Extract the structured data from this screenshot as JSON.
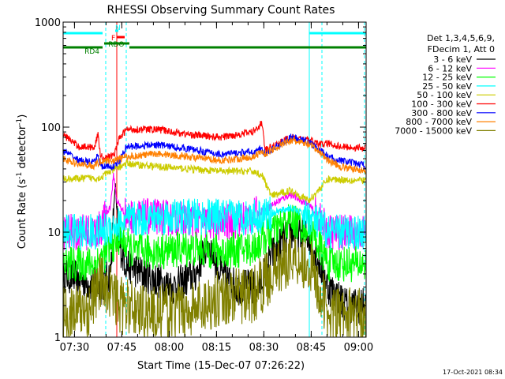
{
  "chart_data": {
    "type": "line",
    "title": "RHESSI Observing Summary Count Rates",
    "ylabel_main": "Count Rate (s",
    "ylabel_sup": "-1",
    "ylabel_tail": " detector",
    "ylabel_close": ")",
    "xlabel": "Start Time (15-Dec-07 07:26:22)",
    "timestamp": "17-Oct-2021 08:34",
    "y_scale": "log",
    "ylim": [
      1,
      1000
    ],
    "xlim_minutes": [
      0,
      96
    ],
    "y_ticks": [
      {
        "value": 1,
        "label": "1"
      },
      {
        "value": 10,
        "label": "10"
      },
      {
        "value": 100,
        "label": "100"
      },
      {
        "value": 1000,
        "label": "1000"
      }
    ],
    "x_ticks": [
      {
        "minute": 3.6,
        "label": "07:30"
      },
      {
        "minute": 18.6,
        "label": "07:45"
      },
      {
        "minute": 33.6,
        "label": "08:00"
      },
      {
        "minute": 48.6,
        "label": "08:15"
      },
      {
        "minute": 63.6,
        "label": "08:30"
      },
      {
        "minute": 78.6,
        "label": "08:45"
      },
      {
        "minute": 93.6,
        "label": "09:00"
      }
    ],
    "legend_header": [
      "Det 1,3,4,5,6,9,",
      "FDecim 1, Att 0"
    ],
    "series": [
      {
        "name": "3 - 6 keV",
        "color": "#000000",
        "points": [
          [
            0,
            4
          ],
          [
            12,
            3
          ],
          [
            15,
            4
          ],
          [
            16.5,
            30
          ],
          [
            17.5,
            8
          ],
          [
            20,
            5
          ],
          [
            25,
            4
          ],
          [
            35,
            3
          ],
          [
            42,
            4
          ],
          [
            46,
            8
          ],
          [
            50,
            4
          ],
          [
            55,
            3
          ],
          [
            62,
            3
          ],
          [
            66,
            6
          ],
          [
            72,
            10
          ],
          [
            78,
            9
          ],
          [
            84,
            3
          ],
          [
            90,
            2
          ],
          [
            96,
            2
          ]
        ]
      },
      {
        "name": "6 - 12 keV",
        "color": "#ff00ff",
        "points": [
          [
            0,
            10
          ],
          [
            10,
            10
          ],
          [
            12,
            11
          ],
          [
            15,
            18
          ],
          [
            16,
            35
          ],
          [
            17,
            20
          ],
          [
            20,
            14
          ],
          [
            30,
            14
          ],
          [
            40,
            13
          ],
          [
            50,
            12
          ],
          [
            60,
            14
          ],
          [
            66,
            18
          ],
          [
            72,
            23
          ],
          [
            78,
            18
          ],
          [
            84,
            10
          ],
          [
            90,
            10
          ],
          [
            96,
            10
          ]
        ]
      },
      {
        "name": "12 - 25 keV",
        "color": "#00ff00",
        "points": [
          [
            0,
            5
          ],
          [
            10,
            5
          ],
          [
            12,
            5.5
          ],
          [
            18,
            9
          ],
          [
            22,
            6.5
          ],
          [
            30,
            6.5
          ],
          [
            40,
            7
          ],
          [
            50,
            6.5
          ],
          [
            60,
            7
          ],
          [
            66,
            10
          ],
          [
            72,
            13
          ],
          [
            78,
            11
          ],
          [
            84,
            5
          ],
          [
            96,
            5
          ]
        ]
      },
      {
        "name": "25 - 50 keV",
        "color": "#00ffff",
        "points": [
          [
            0,
            10
          ],
          [
            10,
            10
          ],
          [
            12,
            10
          ],
          [
            16,
            11.5
          ],
          [
            22,
            13
          ],
          [
            30,
            14
          ],
          [
            40,
            14
          ],
          [
            50,
            14
          ],
          [
            60,
            14
          ],
          [
            66,
            15
          ],
          [
            72,
            17
          ],
          [
            78,
            14
          ],
          [
            84,
            10
          ],
          [
            96,
            10
          ]
        ]
      },
      {
        "name": "50 - 100 keV",
        "color": "#cccc00",
        "points": [
          [
            0,
            32
          ],
          [
            12,
            33
          ],
          [
            13,
            35
          ],
          [
            15,
            38
          ],
          [
            20,
            45
          ],
          [
            30,
            42
          ],
          [
            40,
            40
          ],
          [
            50,
            38
          ],
          [
            60,
            38
          ],
          [
            63,
            35
          ],
          [
            66,
            22
          ],
          [
            72,
            25
          ],
          [
            78,
            20
          ],
          [
            84,
            32
          ],
          [
            96,
            31
          ]
        ]
      },
      {
        "name": "100 - 300 keV",
        "color": "#ff0000",
        "points": [
          [
            0,
            85
          ],
          [
            5,
            65
          ],
          [
            10,
            65
          ],
          [
            11,
            85
          ],
          [
            12,
            52
          ],
          [
            15,
            52
          ],
          [
            16.5,
            58
          ],
          [
            17.5,
            75
          ],
          [
            20,
            95
          ],
          [
            30,
            95
          ],
          [
            40,
            85
          ],
          [
            50,
            80
          ],
          [
            60,
            90
          ],
          [
            63,
            110
          ],
          [
            64,
            60
          ],
          [
            72,
            80
          ],
          [
            78,
            75
          ],
          [
            82,
            68
          ],
          [
            84,
            70
          ],
          [
            88,
            65
          ],
          [
            96,
            63
          ]
        ]
      },
      {
        "name": "300 - 800 keV",
        "color": "#0000ff",
        "points": [
          [
            0,
            60
          ],
          [
            5,
            48
          ],
          [
            10,
            46
          ],
          [
            11,
            55
          ],
          [
            12,
            42
          ],
          [
            16,
            42
          ],
          [
            18,
            48
          ],
          [
            20,
            65
          ],
          [
            30,
            68
          ],
          [
            40,
            62
          ],
          [
            50,
            55
          ],
          [
            60,
            58
          ],
          [
            63,
            62
          ],
          [
            64,
            55
          ],
          [
            72,
            80
          ],
          [
            78,
            72
          ],
          [
            82,
            58
          ],
          [
            84,
            52
          ],
          [
            88,
            48
          ],
          [
            96,
            43
          ]
        ]
      },
      {
        "name": "800 - 7000 keV",
        "color": "#ff8000",
        "points": [
          [
            0,
            50
          ],
          [
            5,
            44
          ],
          [
            10,
            43
          ],
          [
            12,
            48
          ],
          [
            16,
            48
          ],
          [
            20,
            52
          ],
          [
            30,
            56
          ],
          [
            40,
            52
          ],
          [
            50,
            48
          ],
          [
            60,
            52
          ],
          [
            63,
            58
          ],
          [
            64,
            56
          ],
          [
            72,
            75
          ],
          [
            78,
            68
          ],
          [
            82,
            56
          ],
          [
            84,
            48
          ],
          [
            88,
            42
          ],
          [
            96,
            38
          ]
        ]
      },
      {
        "name": "7000 - 15000 keV",
        "color": "#808000",
        "points": [
          [
            0,
            1.7
          ],
          [
            8,
            1.8
          ],
          [
            10,
            2.5
          ],
          [
            12,
            3.5
          ],
          [
            14,
            3
          ],
          [
            18,
            2
          ],
          [
            30,
            1.7
          ],
          [
            40,
            1.8
          ],
          [
            50,
            2.4
          ],
          [
            60,
            2.5
          ],
          [
            66,
            4
          ],
          [
            72,
            6
          ],
          [
            78,
            5
          ],
          [
            84,
            1.6
          ],
          [
            96,
            1.6
          ]
        ]
      }
    ],
    "state_bars": [
      {
        "label": "",
        "color": "#00ffff",
        "segments": [
          [
            0,
            12.5
          ],
          [
            78,
            96
          ]
        ],
        "level": 0
      },
      {
        "label": "RD4",
        "color": "#008000",
        "segments": [
          [
            0,
            12.5
          ],
          [
            21,
            62
          ],
          [
            62,
            80
          ],
          [
            80,
            96
          ]
        ],
        "level": 1
      },
      {
        "label": "N",
        "color": "#00ffff",
        "segments": [
          [
            16.5,
            17.5
          ]
        ],
        "level": -1
      },
      {
        "label": "F",
        "color": "#ff0000",
        "segments": [
          [
            17,
            19.5
          ]
        ],
        "level": -0.5
      },
      {
        "label": "RDO",
        "color": "#008000",
        "segments": [
          [
            13,
            21
          ]
        ],
        "level": 0.8
      }
    ],
    "markers": [
      {
        "minute": 13.5,
        "color": "#00ffff",
        "style": "dashed"
      },
      {
        "minute": 17,
        "color": "#ff0000",
        "style": "solid"
      },
      {
        "minute": 20,
        "color": "#00ffff",
        "style": "dashed"
      },
      {
        "minute": 78,
        "color": "#00ffff",
        "style": "solid"
      },
      {
        "minute": 82,
        "color": "#00ffff",
        "style": "dashed"
      },
      {
        "minute": 95.5,
        "color": "#00ffff",
        "style": "dashed"
      }
    ]
  }
}
